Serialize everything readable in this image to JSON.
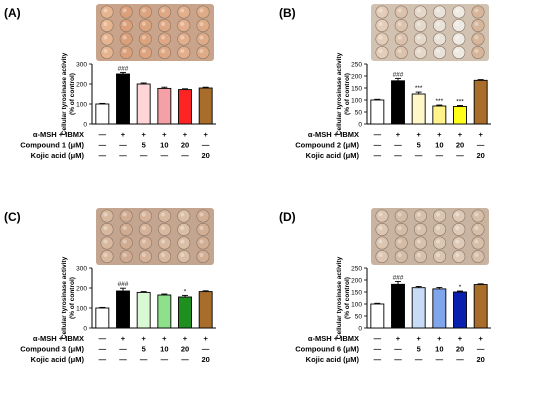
{
  "panels": [
    {
      "label": "(A)",
      "plate": {
        "wells": [
          "#e6b48e",
          "#dba07a",
          "#dca47e",
          "#dea884",
          "#e2ae8c",
          "#dfab86"
        ],
        "bg": "#c9a48a"
      },
      "chart_data": {
        "type": "bar",
        "ylabel": "Cellular tyrosinase activity\n(% of control)",
        "ylim": [
          0,
          300
        ],
        "yticks": [
          0,
          100,
          200,
          300
        ],
        "values": [
          100,
          250,
          200,
          178,
          172,
          180
        ],
        "errors": [
          3,
          8,
          5,
          6,
          4,
          4
        ],
        "colors": [
          "#ffffff",
          "#000000",
          "#ffd5d8",
          "#f4a0a6",
          "#ff2424",
          "#a86c2b"
        ],
        "significance": [
          "",
          "###",
          "",
          "",
          "",
          ""
        ],
        "conditions": [
          {
            "label": "α-MSH + IBMX",
            "cells": [
              "—",
              "+",
              "+",
              "+",
              "+",
              "+"
            ]
          },
          {
            "label": "Compound 1 (μM)",
            "cells": [
              "—",
              "—",
              "5",
              "10",
              "20",
              "—"
            ]
          },
          {
            "label": "Kojic acid (μM)",
            "cells": [
              "—",
              "—",
              "—",
              "—",
              "—",
              "20"
            ]
          }
        ]
      }
    },
    {
      "label": "(B)",
      "plate": {
        "wells": [
          "#e3cdb9",
          "#dcc2ac",
          "#e4d8ca",
          "#e9e2d8",
          "#eeeae3",
          "#d6b59a"
        ],
        "bg": "#d2c2b2"
      },
      "chart_data": {
        "type": "bar",
        "ylabel": "Cellular tyrosinase activity\n(% of control)",
        "ylim": [
          0,
          250
        ],
        "yticks": [
          0,
          50,
          100,
          150,
          200,
          250
        ],
        "values": [
          100,
          180,
          125,
          75,
          73,
          182
        ],
        "errors": [
          3,
          10,
          8,
          4,
          4,
          3
        ],
        "colors": [
          "#ffffff",
          "#000000",
          "#fff7c7",
          "#fff38a",
          "#ffff1a",
          "#a86c2b"
        ],
        "significance": [
          "",
          "###",
          "***",
          "***",
          "***",
          ""
        ],
        "conditions": [
          {
            "label": "α-MSH + IBMX",
            "cells": [
              "—",
              "+",
              "+",
              "+",
              "+",
              "+"
            ]
          },
          {
            "label": "Compound 2 (μM)",
            "cells": [
              "—",
              "—",
              "5",
              "10",
              "20",
              "—"
            ]
          },
          {
            "label": "Kojic acid (μM)",
            "cells": [
              "—",
              "—",
              "—",
              "—",
              "—",
              "20"
            ]
          }
        ]
      }
    },
    {
      "label": "(C)",
      "plate": {
        "wells": [
          "#d8b9a0",
          "#d1ab91",
          "#d5b299",
          "#d8b89f",
          "#dbbea6",
          "#d2ae94"
        ],
        "bg": "#c4a590"
      },
      "chart_data": {
        "type": "bar",
        "ylabel": "Cellular tyrosinase activity\n(% of control)",
        "ylim": [
          0,
          300
        ],
        "yticks": [
          0,
          100,
          200,
          300
        ],
        "values": [
          100,
          185,
          178,
          165,
          155,
          182
        ],
        "errors": [
          3,
          14,
          4,
          5,
          8,
          4
        ],
        "colors": [
          "#ffffff",
          "#000000",
          "#d9f8d4",
          "#8fe08a",
          "#1f8f1f",
          "#a86c2b"
        ],
        "significance": [
          "",
          "###",
          "",
          "",
          "*",
          ""
        ],
        "conditions": [
          {
            "label": "α-MSH + IBMX",
            "cells": [
              "—",
              "+",
              "+",
              "+",
              "+",
              "+"
            ]
          },
          {
            "label": "Compound 3 (μM)",
            "cells": [
              "—",
              "—",
              "5",
              "10",
              "20",
              "—"
            ]
          },
          {
            "label": "Kojic acid (μM)",
            "cells": [
              "—",
              "—",
              "—",
              "—",
              "—",
              "20"
            ]
          }
        ]
      }
    },
    {
      "label": "(D)",
      "plate": {
        "wells": [
          "#dcc6b2",
          "#d4bba5",
          "#d8c1ac",
          "#dbc6b2",
          "#dec9b7",
          "#d6bea8"
        ],
        "bg": "#c9b4a2"
      },
      "chart_data": {
        "type": "bar",
        "ylabel": "Cellular tyrosinase activity\n(% of control)",
        "ylim": [
          0,
          250
        ],
        "yticks": [
          0,
          50,
          100,
          150,
          200,
          250
        ],
        "values": [
          100,
          182,
          168,
          163,
          150,
          181
        ],
        "errors": [
          3,
          12,
          5,
          6,
          4,
          3
        ],
        "colors": [
          "#ffffff",
          "#000000",
          "#c9dcf7",
          "#7fa6ec",
          "#0a1fb0",
          "#a86c2b"
        ],
        "significance": [
          "",
          "###",
          "",
          "",
          "*",
          ""
        ],
        "conditions": [
          {
            "label": "α-MSH + IBMX",
            "cells": [
              "—",
              "+",
              "+",
              "+",
              "+",
              "+"
            ]
          },
          {
            "label": "Compound 6 (μM)",
            "cells": [
              "—",
              "—",
              "5",
              "10",
              "20",
              "—"
            ]
          },
          {
            "label": "Kojic acid (μM)",
            "cells": [
              "—",
              "—",
              "—",
              "—",
              "—",
              "20"
            ]
          }
        ]
      }
    }
  ]
}
